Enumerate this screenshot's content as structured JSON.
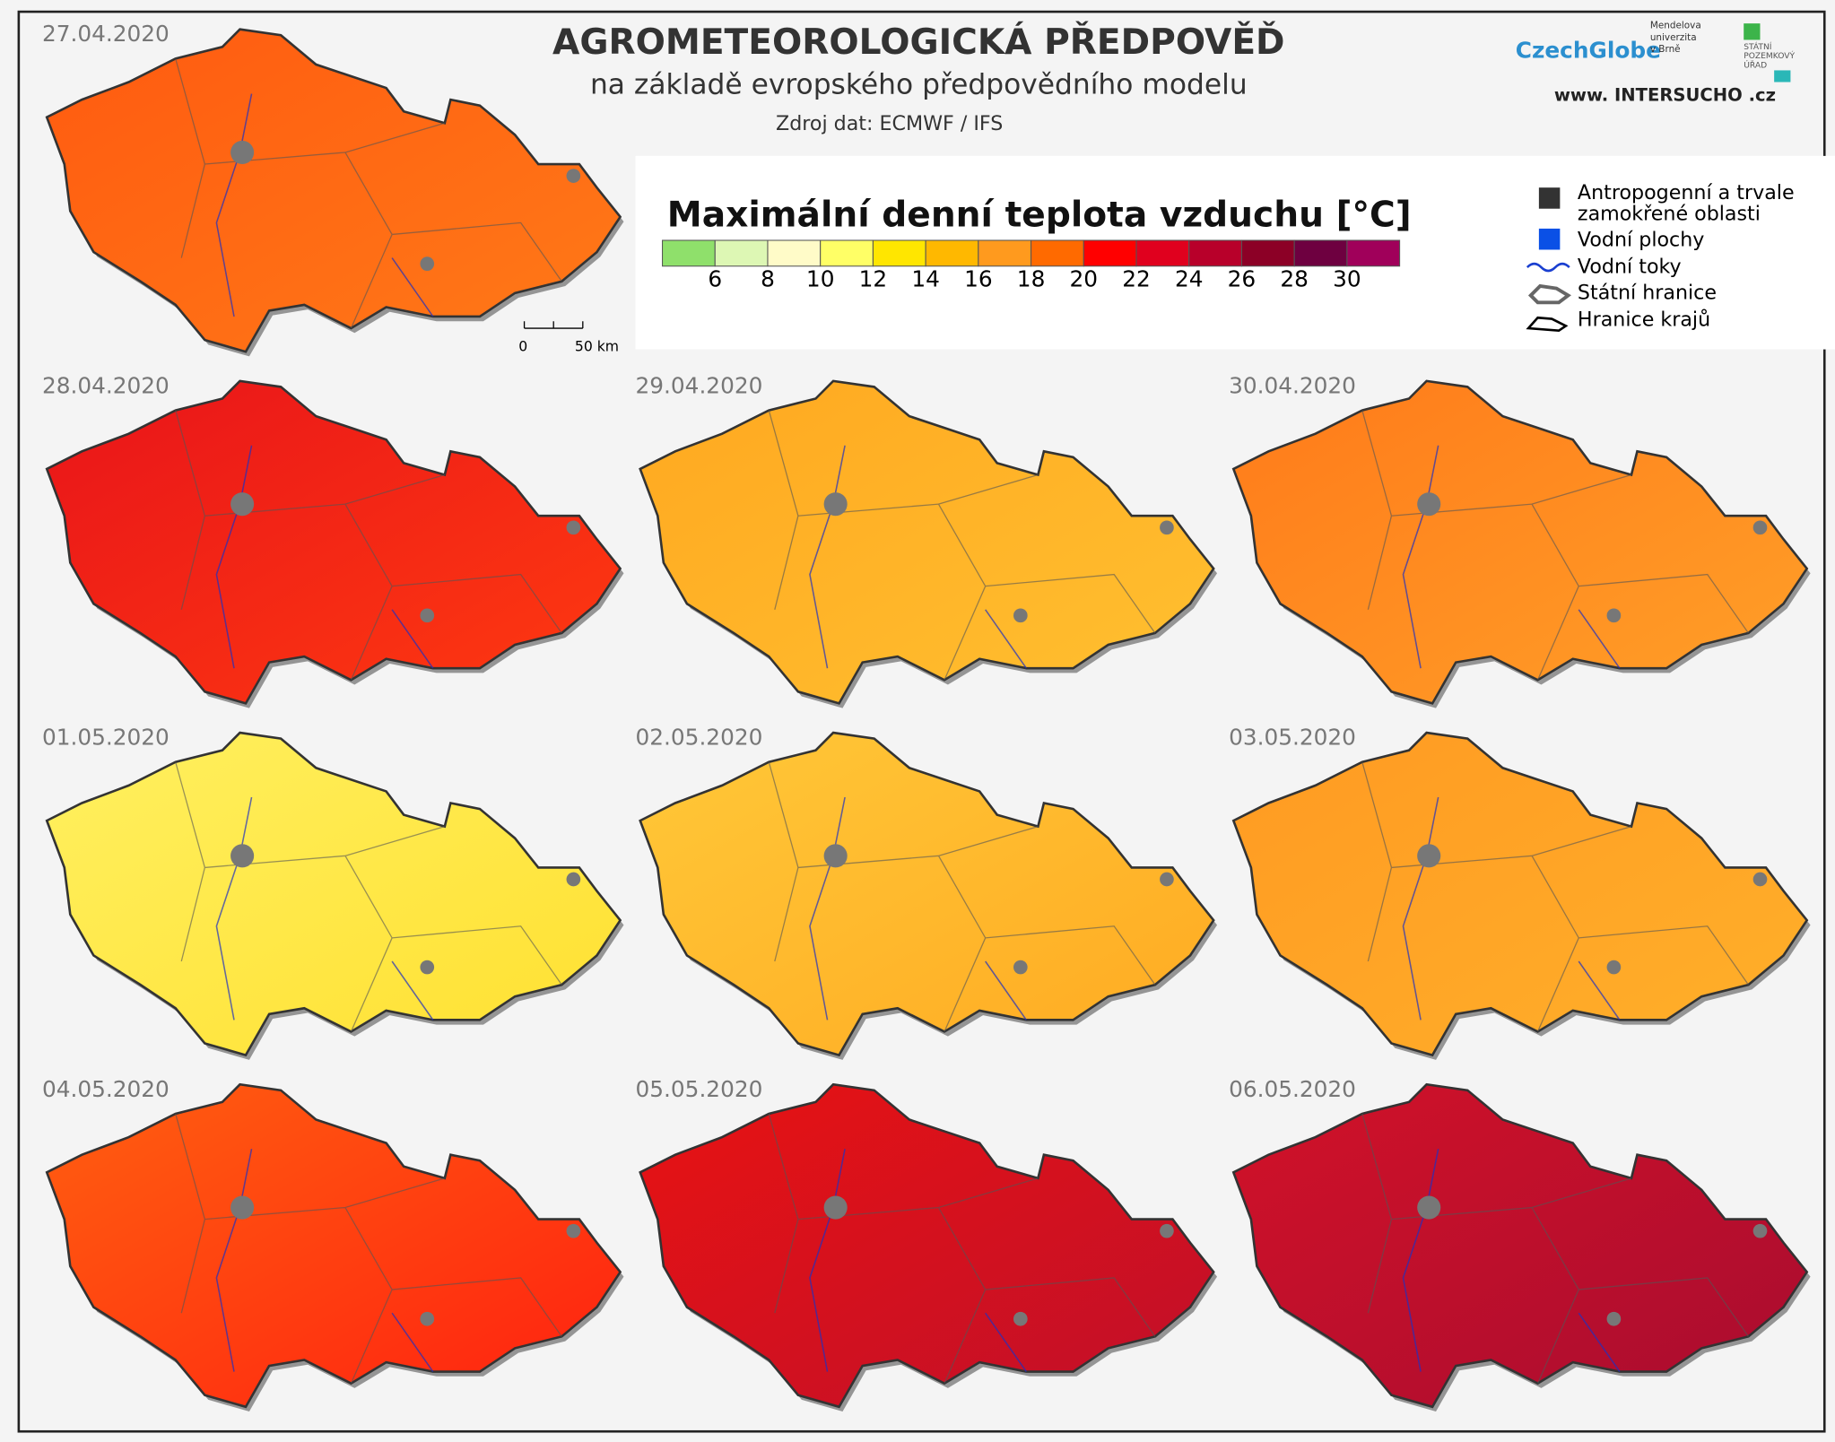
{
  "header": {
    "title": "AGROMETEOROLOGICKÁ  PŘEDPOVĚĎ",
    "subtitle": "na základě evropského předpovědního modelu",
    "source": "Zdroj dat: ECMWF / IFS"
  },
  "logos": {
    "czechglobe": "CzechGlobe",
    "mendel": [
      "Mendelova",
      "univerzita",
      "v Brně"
    ],
    "spu": [
      "STÁTNÍ",
      "POZEMKOVÝ",
      "ÚŘAD"
    ],
    "url": "www. INTERSUCHO .cz"
  },
  "legend": {
    "title": "Maximální denní teplota vzduchu [°C]",
    "colors": [
      "#8fe06b",
      "#ddf7b4",
      "#fffbc8",
      "#ffff66",
      "#ffe600",
      "#ffb800",
      "#ff9a1e",
      "#ff6a00",
      "#ff0000",
      "#e0001e",
      "#b8002a",
      "#8c0026",
      "#6e0040",
      "#a0005a"
    ],
    "ticks": [
      6,
      8,
      10,
      12,
      14,
      16,
      18,
      20,
      22,
      24,
      26,
      28,
      30
    ],
    "items": [
      [
        "Antropogenní a trvale",
        "zamokřené oblasti"
      ],
      [
        "Vodní plochy"
      ],
      [
        "Vodní toky"
      ],
      [
        "Státní hranice"
      ],
      [
        "Hranice krajů"
      ]
    ]
  },
  "scale_bar": {
    "labels": [
      "0",
      "50 km"
    ]
  },
  "maps": [
    {
      "date": "27.04.2020"
    },
    {
      "date": "28.04.2020"
    },
    {
      "date": "29.04.2020"
    },
    {
      "date": "30.04.2020"
    },
    {
      "date": "01.05.2020"
    },
    {
      "date": "02.05.2020"
    },
    {
      "date": "03.05.2020"
    },
    {
      "date": "04.05.2020"
    },
    {
      "date": "05.05.2020"
    },
    {
      "date": "06.05.2020"
    }
  ]
}
